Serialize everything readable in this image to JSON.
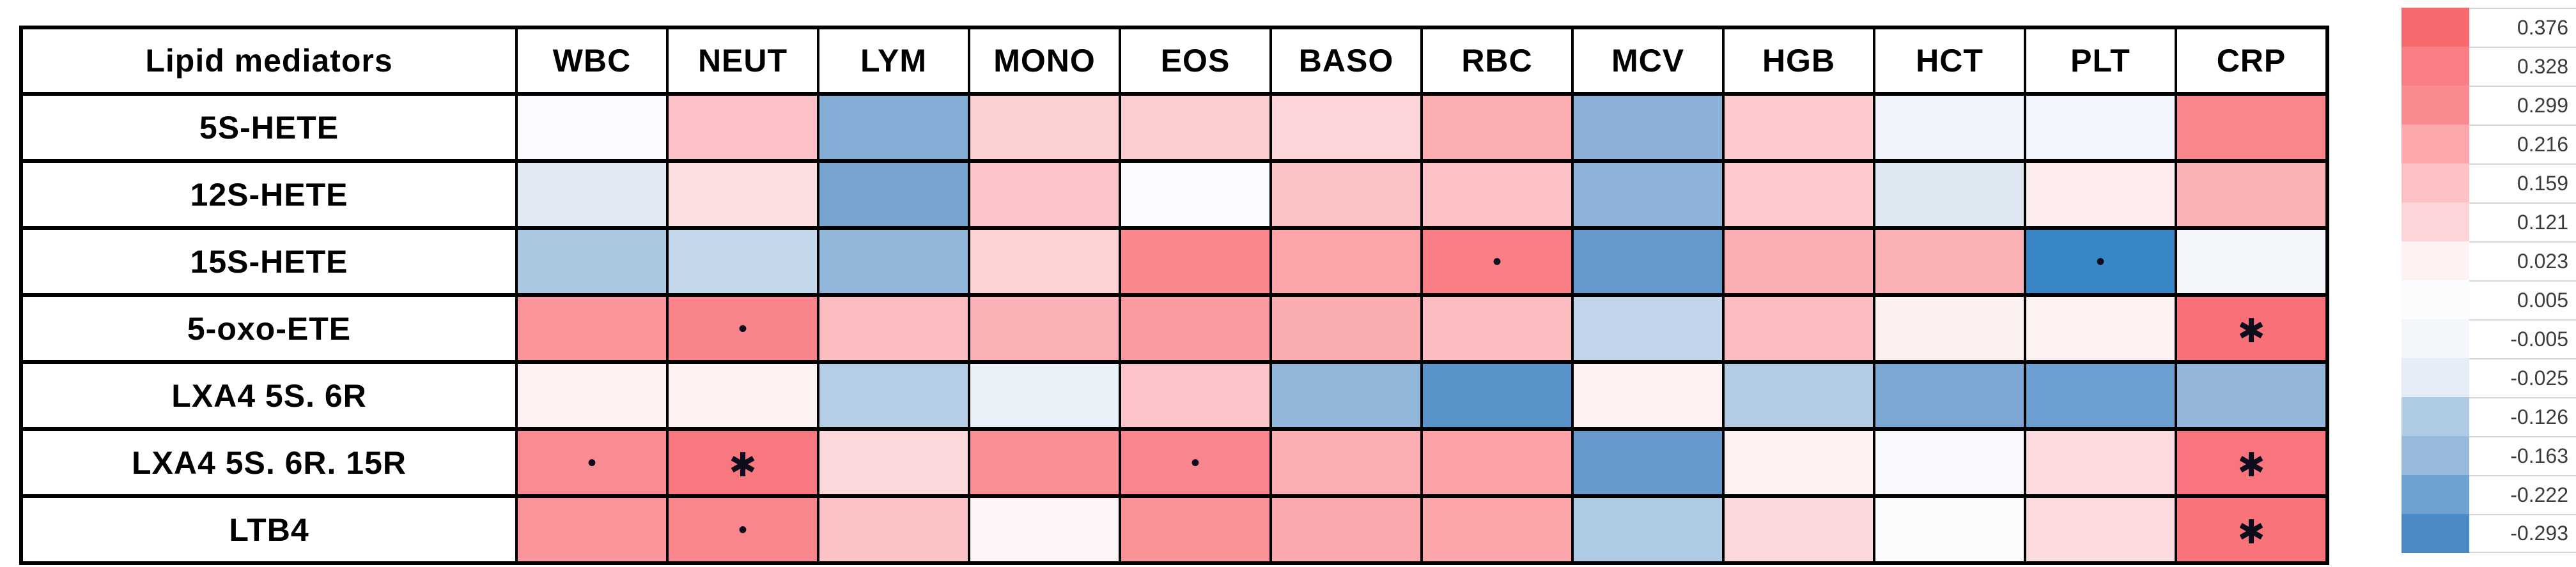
{
  "table": {
    "corner_label": "Lipid mediators",
    "columns": [
      "WBC",
      "NEUT",
      "LYM",
      "MONO",
      "EOS",
      "BASO",
      "RBC",
      "MCV",
      "HGB",
      "HCT",
      "PLT",
      "CRP"
    ],
    "rows": [
      {
        "label": "5S-HETE",
        "colors": [
          "#FBFAFE",
          "#FBC1C6",
          "#84ADD6",
          "#FCCFD2",
          "#FCCCD0",
          "#FDD5D8",
          "#FBADB2",
          "#8BB1D8",
          "#FCC9CD",
          "#F1F4FA",
          "#F2F5FB",
          "#FA868C"
        ],
        "markers": [
          "",
          "",
          "",
          "",
          "",
          "",
          "",
          "",
          "",
          "",
          "",
          ""
        ]
      },
      {
        "label": "12S-HETE",
        "colors": [
          "#E1EAF4",
          "#FDDEE0",
          "#77A4D1",
          "#FCC5C9",
          "#FAFBFE",
          "#FCC3C7",
          "#FCC1C5",
          "#8EB3D9",
          "#FCC9CD",
          "#DCE7F2",
          "#FDECED",
          "#FBB1B6"
        ],
        "markers": [
          "",
          "",
          "",
          "",
          "",
          "",
          "",
          "",
          "",
          "",
          "",
          ""
        ]
      },
      {
        "label": "15S-HETE",
        "colors": [
          "#ABC7E2",
          "#C5D7EB",
          "#92B5DA",
          "#FDD3D6",
          "#FA878E",
          "#FBA4AA",
          "#F97E86",
          "#6598CB",
          "#FBAFB4",
          "#FBB2B7",
          "#3886C5",
          "#F2F5F9"
        ],
        "markers": [
          "",
          "",
          "",
          "",
          "",
          "",
          "•",
          "",
          "",
          "",
          "•",
          ""
        ]
      },
      {
        "label": "5-oxo-ETE",
        "colors": [
          "#FA959B",
          "#F9848B",
          "#FCBCC0",
          "#FBB2B7",
          "#FA9BA1",
          "#FBACB1",
          "#FCBDC2",
          "#C2D5EA",
          "#FBBCC1",
          "#FDF0F1",
          "#FDF1F2",
          "#F97079"
        ],
        "markers": [
          "",
          "•",
          "",
          "",
          "",
          "",
          "",
          "",
          "",
          "",
          "",
          "✱"
        ]
      },
      {
        "label": "LXA4 5S. 6R",
        "colors": [
          "#FEF2F3",
          "#FEF2F3",
          "#B6CEE5",
          "#EBF1F8",
          "#FCC5C9",
          "#92B5DA",
          "#5A93C9",
          "#FEF2F3",
          "#B3CCE4",
          "#7CA7D3",
          "#6C9ECF",
          "#93B6DA"
        ],
        "markers": [
          "",
          "",
          "",
          "",
          "",
          "",
          "",
          "",
          "",
          "",
          "",
          ""
        ]
      },
      {
        "label": "LXA4 5S. 6R. 15R",
        "colors": [
          "#FA8B92",
          "#F87880",
          "#FDD8DB",
          "#FA8F96",
          "#F9868E",
          "#FBAFB4",
          "#FBA3A9",
          "#6699CC",
          "#FEF2F3",
          "#F7F9FC",
          "#FDDCDF",
          "#F9757D"
        ],
        "markers": [
          "•",
          "✱",
          "",
          "",
          "•",
          "",
          "",
          "",
          "",
          "",
          "",
          "✱"
        ]
      },
      {
        "label": "LTB4",
        "colors": [
          "#FA959B",
          "#F9868D",
          "#FCC3C7",
          "#FEF4F5",
          "#FA9298",
          "#FBA9AE",
          "#FBA6AB",
          "#AECAE4",
          "#FDD8DB",
          "#FBFCFE",
          "#FDDCDF",
          "#F9737B"
        ],
        "markers": [
          "",
          "•",
          "",
          "",
          "",
          "",
          "",
          "",
          "",
          "",
          "",
          "✱"
        ]
      }
    ]
  },
  "legend": {
    "entries": [
      {
        "value": "0.376",
        "color": "#F8696E"
      },
      {
        "value": "0.328",
        "color": "#F97E84"
      },
      {
        "value": "0.299",
        "color": "#FA8A90"
      },
      {
        "value": "0.216",
        "color": "#FBA7AC"
      },
      {
        "value": "0.159",
        "color": "#FCC2C6"
      },
      {
        "value": "0.121",
        "color": "#FDD5D8"
      },
      {
        "value": "0.023",
        "color": "#FEF2F3"
      },
      {
        "value": "0.005",
        "color": "#FBFCFE"
      },
      {
        "value": "-0.005",
        "color": "#F3F6FA"
      },
      {
        "value": "-0.025",
        "color": "#E6EDF6"
      },
      {
        "value": "-0.126",
        "color": "#AECAE4"
      },
      {
        "value": "-0.163",
        "color": "#97B9DC"
      },
      {
        "value": "-0.222",
        "color": "#6FA1D1"
      },
      {
        "value": "-0.293",
        "color": "#4A8BC6"
      }
    ]
  },
  "chart_data": {
    "type": "heatmap",
    "title": "",
    "x_categories": [
      "WBC",
      "NEUT",
      "LYM",
      "MONO",
      "EOS",
      "BASO",
      "RBC",
      "MCV",
      "HGB",
      "HCT",
      "PLT",
      "CRP"
    ],
    "y_categories": [
      "5S-HETE",
      "12S-HETE",
      "15S-HETE",
      "5-oxo-ETE",
      "LXA4 5S. 6R",
      "LXA4 5S. 6R. 15R",
      "LTB4"
    ],
    "values": [
      [
        0.0,
        0.16,
        -0.17,
        0.13,
        0.13,
        0.12,
        0.21,
        -0.16,
        0.14,
        -0.01,
        -0.01,
        0.3
      ],
      [
        -0.04,
        0.11,
        -0.2,
        0.15,
        0.0,
        0.15,
        0.15,
        -0.16,
        0.14,
        -0.04,
        0.03,
        0.19
      ],
      [
        -0.12,
        -0.09,
        -0.15,
        0.12,
        0.3,
        0.22,
        0.33,
        -0.23,
        0.21,
        0.2,
        -0.31,
        -0.01
      ],
      [
        0.27,
        0.31,
        0.17,
        0.2,
        0.26,
        0.21,
        0.17,
        -0.08,
        0.18,
        0.03,
        0.03,
        0.36
      ],
      [
        0.03,
        0.03,
        -0.11,
        -0.03,
        0.16,
        -0.16,
        -0.25,
        0.03,
        -0.12,
        -0.22,
        -0.24,
        -0.15
      ],
      [
        0.29,
        0.36,
        0.11,
        0.28,
        0.31,
        0.21,
        0.23,
        -0.23,
        0.03,
        0.01,
        0.1,
        0.36
      ],
      [
        0.27,
        0.3,
        0.16,
        0.02,
        0.28,
        0.21,
        0.22,
        -0.12,
        0.1,
        0.0,
        0.1,
        0.37
      ]
    ],
    "significance": [
      [
        "",
        "",
        "",
        "",
        "",
        "",
        "",
        "",
        "",
        "",
        "",
        ""
      ],
      [
        "",
        "",
        "",
        "",
        "",
        "",
        "",
        "",
        "",
        "",
        "",
        ""
      ],
      [
        "",
        "",
        "",
        "",
        "",
        "",
        "dot",
        "",
        "",
        "",
        "dot",
        ""
      ],
      [
        "",
        "dot",
        "",
        "",
        "",
        "",
        "",
        "",
        "",
        "",
        "",
        "star"
      ],
      [
        "",
        "",
        "",
        "",
        "",
        "",
        "",
        "",
        "",
        "",
        "",
        ""
      ],
      [
        "dot",
        "star",
        "",
        "",
        "dot",
        "",
        "",
        "",
        "",
        "",
        "",
        "star"
      ],
      [
        "",
        "dot",
        "",
        "",
        "",
        "",
        "",
        "",
        "",
        "",
        "",
        "star"
      ]
    ],
    "colorscale": {
      "min": -0.293,
      "max": 0.376,
      "min_color": "#4A8BC6",
      "mid_color": "#FFFFFF",
      "max_color": "#F8696E"
    },
    "legend_ticks": [
      0.376,
      0.328,
      0.299,
      0.216,
      0.159,
      0.121,
      0.023,
      0.005,
      -0.005,
      -0.025,
      -0.126,
      -0.163,
      -0.222,
      -0.293
    ],
    "legend_position": "right",
    "grid": true
  }
}
